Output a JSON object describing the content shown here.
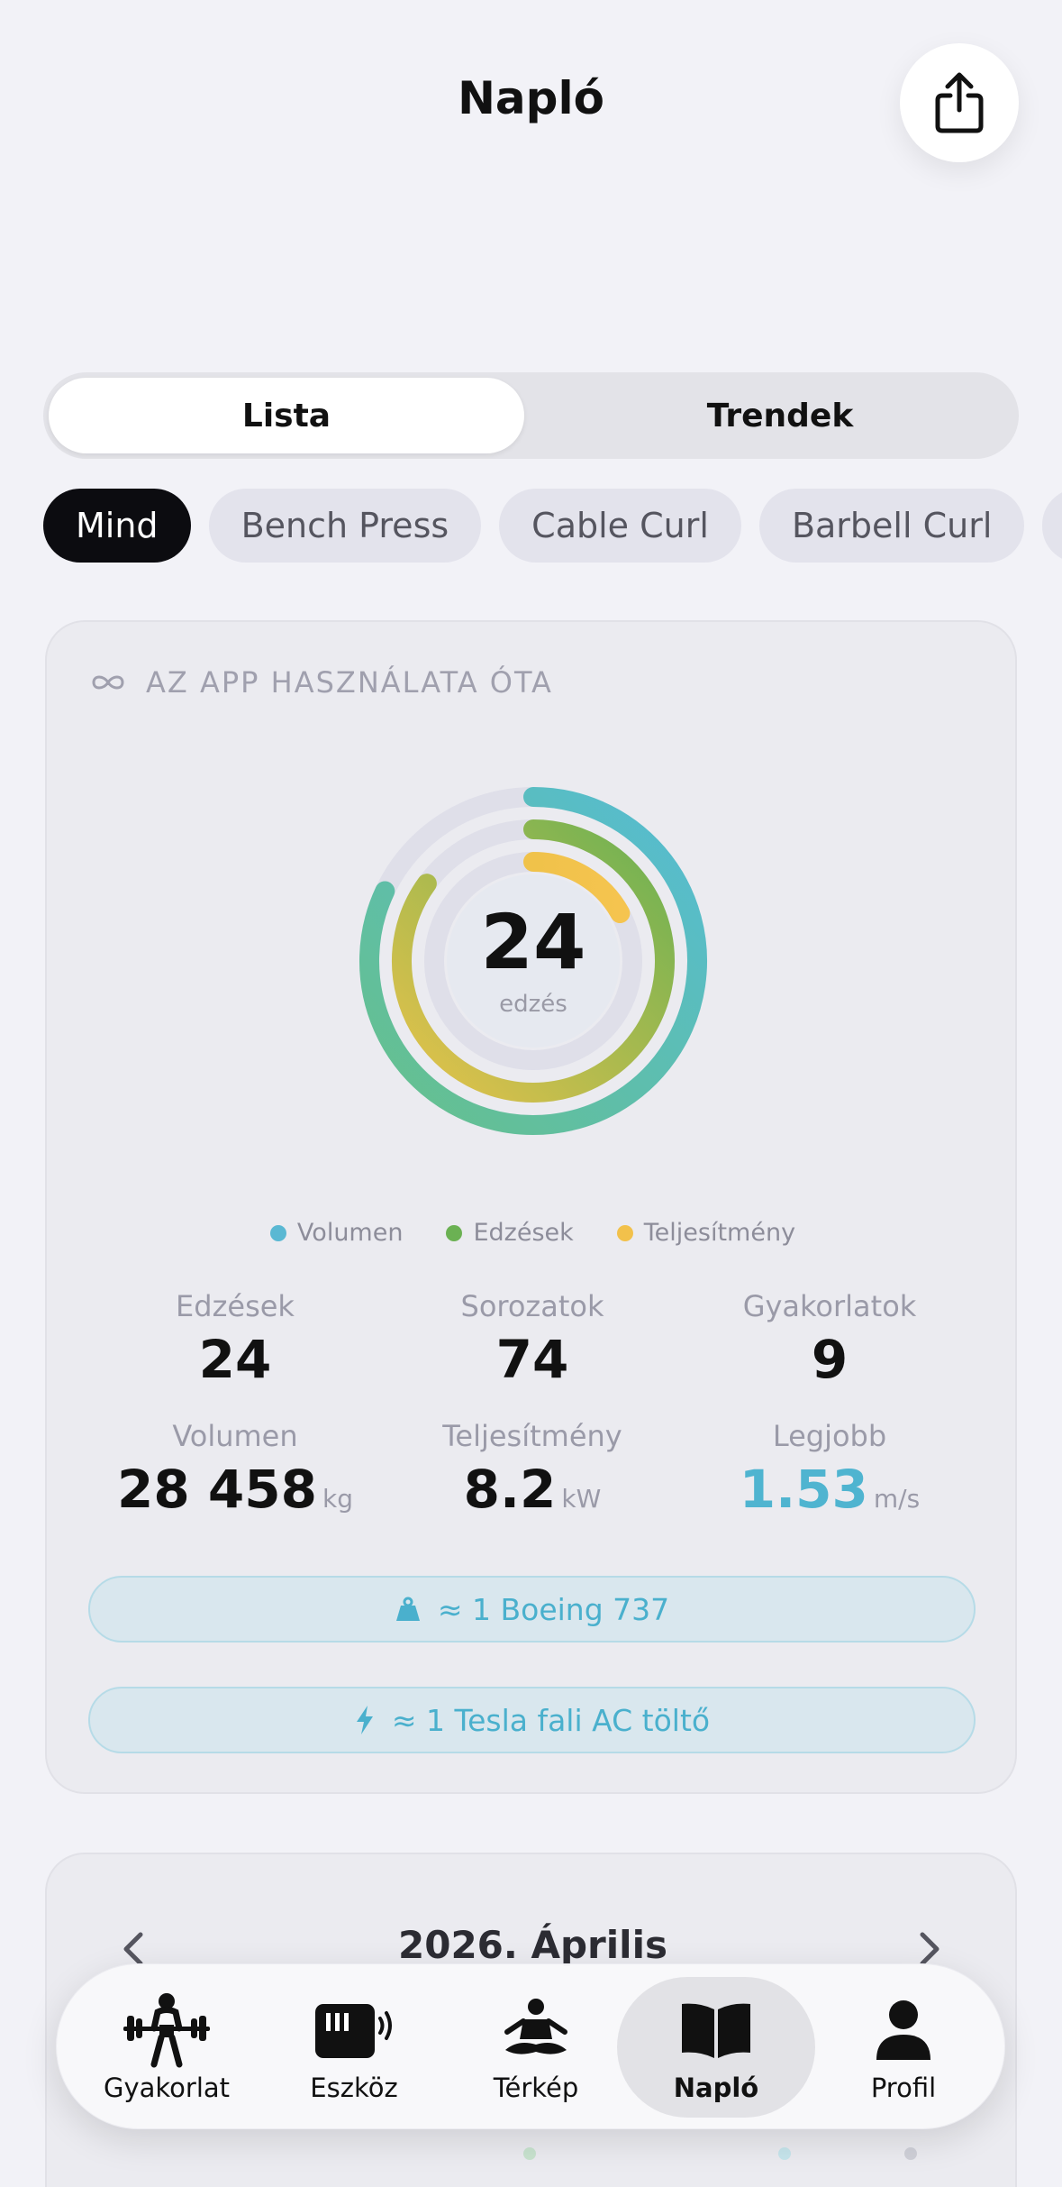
{
  "header": {
    "title": "Napló"
  },
  "segmented": {
    "active": "Lista",
    "inactive": "Trendek"
  },
  "filters": [
    "Mind",
    "Bench Press",
    "Cable Curl",
    "Barbell Curl",
    ""
  ],
  "stats_card": {
    "heading": "AZ APP HASZNÁLATA ÓTA",
    "ring": {
      "value": "24",
      "unit": "edzés"
    },
    "rings_progress": {
      "volumen": 0.82,
      "edzesek": 0.85,
      "teljesitmeny": 0.17
    },
    "legend": [
      {
        "label": "Volumen",
        "color": "#5ab8d3"
      },
      {
        "label": "Edzések",
        "color": "#6bb153"
      },
      {
        "label": "Teljesítmény",
        "color": "#f2c14b"
      }
    ],
    "stats": {
      "edzesek": {
        "label": "Edzések",
        "value": "24"
      },
      "sorozatok": {
        "label": "Sorozatok",
        "value": "74"
      },
      "gyakorlatok": {
        "label": "Gyakorlatok",
        "value": "9"
      },
      "volumen": {
        "label": "Volumen",
        "value": "28 458",
        "unit": "kg"
      },
      "teljesitmeny": {
        "label": "Teljesítmény",
        "value": "8.2",
        "unit": "kW"
      },
      "legjobb": {
        "label": "Legjobb",
        "value": "1.53",
        "unit": "m/s"
      }
    },
    "facts": [
      "≈ 1 Boeing 737",
      "≈ 1 Tesla fali AC töltő"
    ],
    "accent_color": "#4fb4d0"
  },
  "calendar": {
    "title": "2026. Április"
  },
  "tabbar": {
    "items": [
      {
        "label": "Gyakorlat",
        "icon": "weightlifter-icon"
      },
      {
        "label": "Eszköz",
        "icon": "device-icon"
      },
      {
        "label": "Térkép",
        "icon": "meditation-icon"
      },
      {
        "label": "Napló",
        "icon": "book-icon"
      },
      {
        "label": "Profil",
        "icon": "person-icon"
      }
    ],
    "active": "Napló"
  }
}
